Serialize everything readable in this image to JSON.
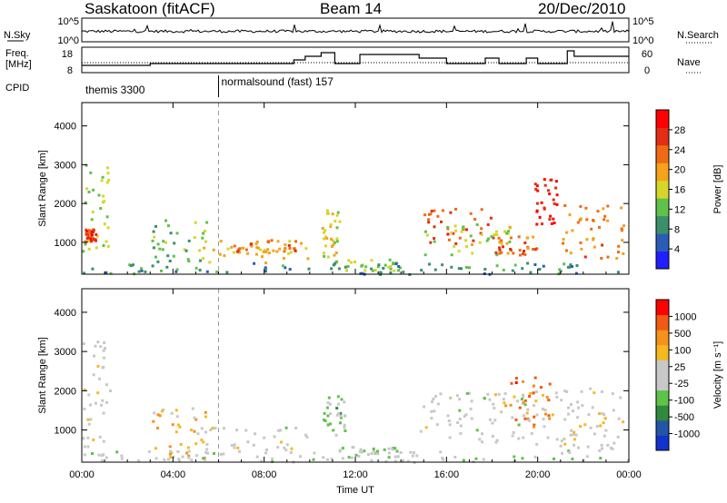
{
  "header": {
    "station": "Saskatoon (fitACF)",
    "beam": "Beam 14",
    "date": "20/Dec/2010"
  },
  "colors": {
    "power_scale": [
      "#1f1fff",
      "#2a5db8",
      "#3b8f6a",
      "#5fc24a",
      "#d6d62a",
      "#f5a21c",
      "#f06a15",
      "#e32d14",
      "#ff0000"
    ],
    "velocity_scale": [
      "#1133cc",
      "#2255a8",
      "#2f8a3c",
      "#5fc24a",
      "#c8c8c8",
      "#c8c8c8",
      "#f5b820",
      "#f5911c",
      "#f05a15",
      "#ff0000"
    ]
  },
  "strip_panels": {
    "sky_label": "N.Sky",
    "search_label": "N.Search",
    "sky_ticks": [
      "10^5",
      "10^0"
    ],
    "search_ticks": [
      "10^5",
      "10^0"
    ],
    "freq_label_top": "Freq.",
    "freq_label_bottom": "[MHz]",
    "freq_ticks": [
      "18",
      "8"
    ],
    "nave_label": "Nave",
    "nave_ticks": [
      "60",
      "0"
    ],
    "cpid_label": "CPID",
    "cpid_modes": [
      "themis 3300",
      "normalsound (fast) 157"
    ]
  },
  "chart_data": [
    {
      "type": "heatmap",
      "title": "",
      "xlabel": "Time UT",
      "ylabel": "Slant Range [km]",
      "quantity": "Power",
      "colorbar_label": "Power [dB]",
      "colorbar_ticks": [
        "28",
        "24",
        "20",
        "16",
        "12",
        "8",
        "4"
      ],
      "color_range": [
        0,
        32
      ],
      "xlim": [
        0,
        24
      ],
      "ylim": [
        180,
        4600
      ],
      "x_ticks": [
        "00:00",
        "04:00",
        "08:00",
        "12:00",
        "16:00",
        "20:00",
        "00:00"
      ],
      "y_ticks": [
        "1000",
        "2000",
        "3000",
        "4000"
      ],
      "grid": false,
      "legend": "colorbar-right",
      "scatter_regions": [
        {
          "t": [
            0.0,
            1.2
          ],
          "r": [
            800,
            3200
          ],
          "value": 14
        },
        {
          "t": [
            0.1,
            0.6
          ],
          "r": [
            1050,
            1400
          ],
          "value": 27
        },
        {
          "t": [
            3.0,
            5.5
          ],
          "r": [
            300,
            1600
          ],
          "value": 12
        },
        {
          "t": [
            5.0,
            10.0
          ],
          "r": [
            500,
            1100
          ],
          "value": 18
        },
        {
          "t": [
            6.5,
            9.5
          ],
          "r": [
            700,
            1100
          ],
          "value": 23
        },
        {
          "t": [
            10.5,
            11.3
          ],
          "r": [
            600,
            1900
          ],
          "value": 17
        },
        {
          "t": [
            11.0,
            14.0
          ],
          "r": [
            300,
            600
          ],
          "value": 14
        },
        {
          "t": [
            14.8,
            18.0
          ],
          "r": [
            1000,
            1900
          ],
          "value": 25
        },
        {
          "t": [
            15.0,
            19.5
          ],
          "r": [
            700,
            1500
          ],
          "value": 15
        },
        {
          "t": [
            18.0,
            20.0
          ],
          "r": [
            700,
            1200
          ],
          "value": 24
        },
        {
          "t": [
            19.8,
            20.8
          ],
          "r": [
            1500,
            2700
          ],
          "value": 29
        },
        {
          "t": [
            21.0,
            23.8
          ],
          "r": [
            600,
            2000
          ],
          "value": 22
        },
        {
          "t": [
            0.0,
            24.0
          ],
          "r": [
            200,
            500
          ],
          "value": 9
        }
      ]
    },
    {
      "type": "heatmap",
      "title": "",
      "xlabel": "Time UT",
      "ylabel": "Slant Range [km]",
      "quantity": "Velocity",
      "colorbar_label": "Velocity [m s⁻¹]",
      "colorbar_ticks": [
        "1000",
        "500",
        "100",
        "25",
        "-25",
        "-100",
        "-500",
        "-1000"
      ],
      "color_range": [
        -1200,
        1200
      ],
      "xlim": [
        0,
        24
      ],
      "ylim": [
        180,
        4600
      ],
      "x_ticks": [
        "00:00",
        "04:00",
        "08:00",
        "12:00",
        "16:00",
        "20:00",
        "00:00"
      ],
      "y_ticks": [
        "1000",
        "2000",
        "3000",
        "4000"
      ],
      "grid": false,
      "legend": "colorbar-right",
      "scatter_regions": [
        {
          "t": [
            0.0,
            1.2
          ],
          "r": [
            600,
            3300
          ],
          "value": 30
        },
        {
          "t": [
            3.0,
            5.5
          ],
          "r": [
            300,
            1600
          ],
          "value": 400
        },
        {
          "t": [
            5.0,
            10.0
          ],
          "r": [
            500,
            1100
          ],
          "value": 0
        },
        {
          "t": [
            10.5,
            11.5
          ],
          "r": [
            900,
            1900
          ],
          "value": -300
        },
        {
          "t": [
            11.0,
            14.0
          ],
          "r": [
            300,
            600
          ],
          "value": -60
        },
        {
          "t": [
            14.8,
            19.5
          ],
          "r": [
            700,
            2000
          ],
          "value": 0
        },
        {
          "t": [
            18.5,
            20.5
          ],
          "r": [
            1100,
            2400
          ],
          "value": 700
        },
        {
          "t": [
            19.5,
            23.8
          ],
          "r": [
            500,
            2100
          ],
          "value": 60
        },
        {
          "t": [
            0.0,
            24.0
          ],
          "r": [
            200,
            500
          ],
          "value": -80
        }
      ]
    }
  ]
}
